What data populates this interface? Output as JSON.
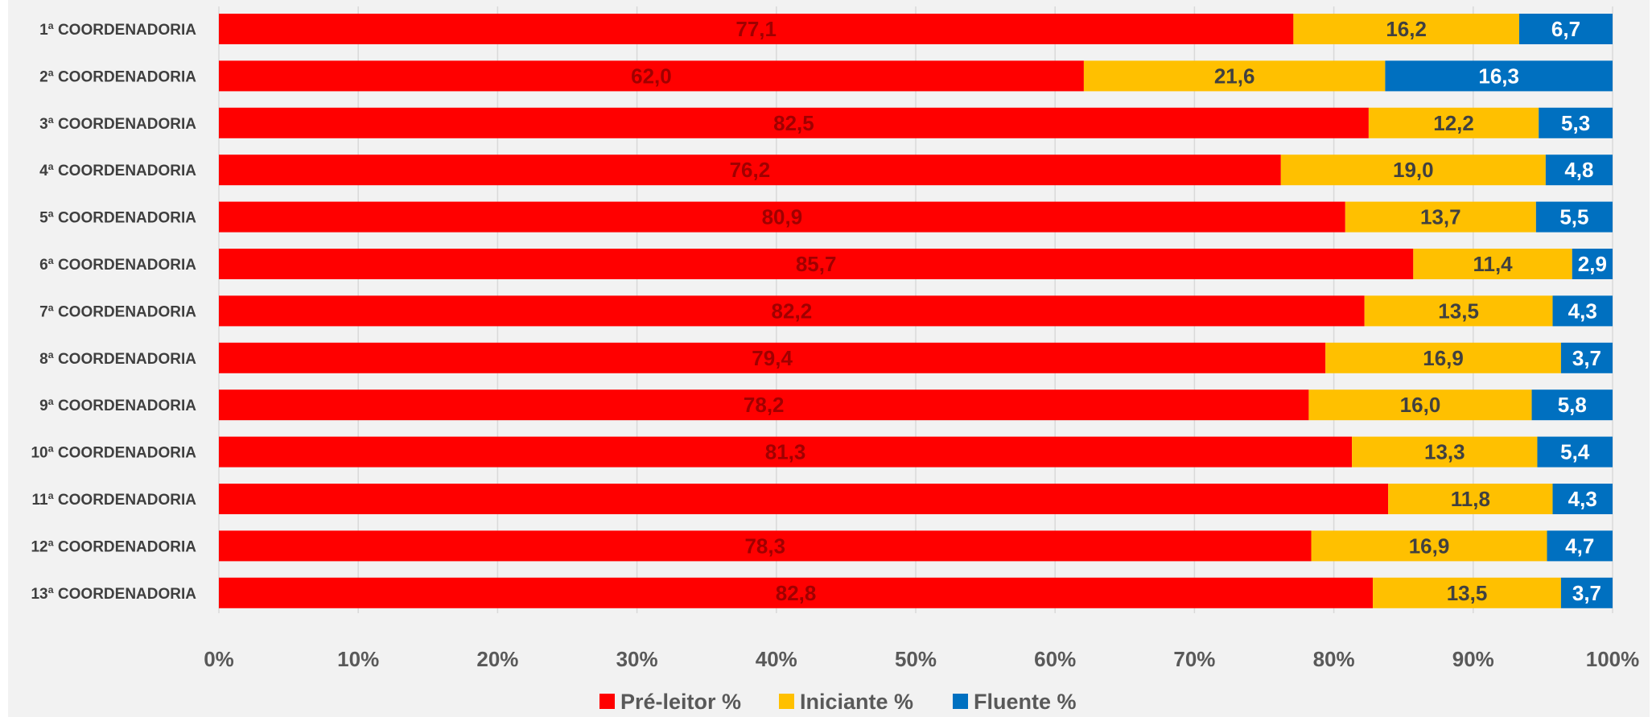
{
  "chart_data": {
    "type": "bar",
    "orientation": "horizontal",
    "stacked": "percent",
    "categories": [
      "1ª COORDENADORIA",
      "2ª COORDENADORIA",
      "3ª COORDENADORIA",
      "4ª COORDENADORIA",
      "5ª COORDENADORIA",
      "6ª COORDENADORIA",
      "7ª COORDENADORIA",
      "8ª COORDENADORIA",
      "9ª COORDENADORIA",
      "10ª COORDENADORIA",
      "11ª COORDENADORIA",
      "12ª COORDENADORIA",
      "13ª COORDENADORIA"
    ],
    "series": [
      {
        "name": "Pré-leitor %",
        "color": "#ff0000",
        "label_color": "#a00000",
        "values": [
          77.1,
          62.0,
          82.5,
          76.2,
          80.9,
          85.7,
          82.2,
          79.4,
          78.2,
          81.3,
          83.9,
          78.3,
          82.8
        ],
        "labels": [
          "77,1",
          "62,0",
          "82,5",
          "76,2",
          "80,9",
          "85,7",
          "82,2",
          "79,4",
          "78,2",
          "81,3",
          "",
          "78,3",
          "82,8"
        ]
      },
      {
        "name": "Iniciante %",
        "color": "#ffc000",
        "label_color": "#404040",
        "values": [
          16.2,
          21.6,
          12.2,
          19.0,
          13.7,
          11.4,
          13.5,
          16.9,
          16.0,
          13.3,
          11.8,
          16.9,
          13.5
        ],
        "labels": [
          "16,2",
          "21,6",
          "12,2",
          "19,0",
          "13,7",
          "11,4",
          "13,5",
          "16,9",
          "16,0",
          "13,3",
          "11,8",
          "16,9",
          "13,5"
        ]
      },
      {
        "name": "Fluente %",
        "color": "#0070c0",
        "label_color": "#ffffff",
        "values": [
          6.7,
          16.3,
          5.3,
          4.8,
          5.5,
          2.9,
          4.3,
          3.7,
          5.8,
          5.4,
          4.3,
          4.7,
          3.7
        ],
        "labels": [
          "6,7",
          "16,3",
          "5,3",
          "4,8",
          "5,5",
          "2,9",
          "4,3",
          "3,7",
          "5,8",
          "5,4",
          "4,3",
          "4,7",
          "3,7"
        ]
      }
    ],
    "x_ticks": [
      "0%",
      "10%",
      "20%",
      "30%",
      "40%",
      "50%",
      "60%",
      "70%",
      "80%",
      "90%",
      "100%"
    ],
    "xlim": [
      0,
      100
    ],
    "grid": true,
    "legend": "bottom-center",
    "title": "",
    "xlabel": "",
    "ylabel": ""
  }
}
